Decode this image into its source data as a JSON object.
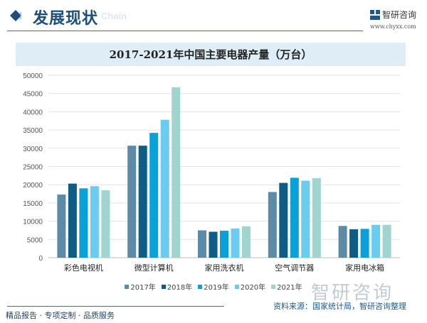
{
  "header": {
    "section_title": "发展现状",
    "section_subtitle": "Chain",
    "logo_text": "智研咨询",
    "logo_url": "www.chyxx.com"
  },
  "chart_data": {
    "type": "bar",
    "title": "2017-2021年中国主要电器产量（万台）",
    "categories": [
      "彩色电视机",
      "微型计算机",
      "家用洗衣机",
      "空气调节器",
      "家用电冰箱"
    ],
    "series": [
      {
        "name": "2017年",
        "color": "#5b8ba7",
        "values": [
          17300,
          30700,
          7500,
          18000,
          8700
        ]
      },
      {
        "name": "2018年",
        "color": "#0d5d86",
        "values": [
          20300,
          30700,
          7100,
          20500,
          7800
        ]
      },
      {
        "name": "2019年",
        "color": "#0aa0d8",
        "values": [
          19000,
          34200,
          7400,
          21900,
          7900
        ]
      },
      {
        "name": "2020年",
        "color": "#6ccbf0",
        "values": [
          19600,
          37800,
          8000,
          21100,
          9000
        ]
      },
      {
        "name": "2021年",
        "color": "#a0d4cf",
        "values": [
          18500,
          46700,
          8600,
          21800,
          9000
        ]
      }
    ],
    "ylim": [
      0,
      50000
    ],
    "yticks": [
      0,
      5000,
      10000,
      15000,
      20000,
      25000,
      30000,
      35000,
      40000,
      45000,
      50000
    ],
    "grid": true,
    "legend_position": "bottom"
  },
  "watermark": "智研咨询",
  "source": "资料来源：国家统计局，智研咨询整理",
  "footer": "精品报告 · 专项定制 · 品质服务"
}
